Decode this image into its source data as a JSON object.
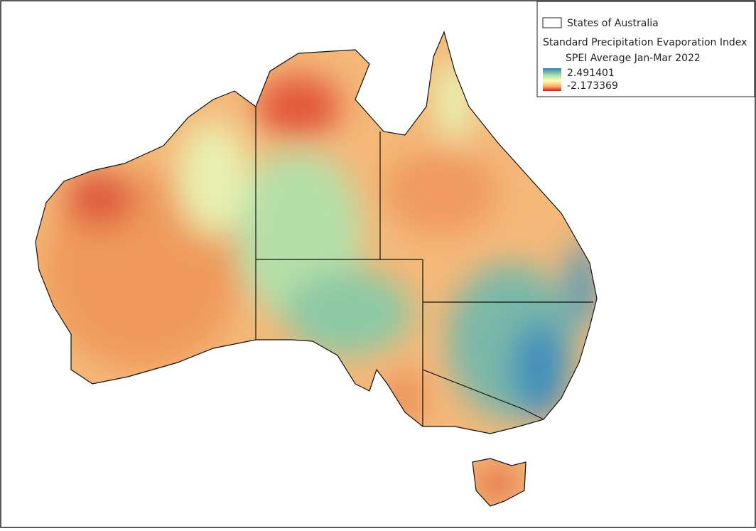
{
  "legend": {
    "states_layer": "States of Australia",
    "index_title": "Standard Precipitation Evaporation Index",
    "band_title": "SPEI Average Jan-Mar 2022",
    "max": 2.491401,
    "min": -2.173369
  }
}
